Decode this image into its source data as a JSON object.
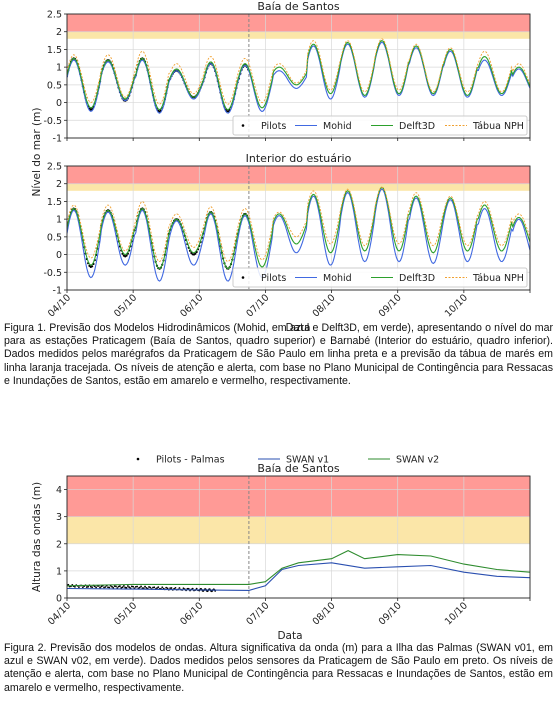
{
  "figure1": {
    "caption": "Figura 1. Previsão dos Modelos Hidrodinâmicos (Mohid, em azul e Delft3D, em verde), apresentando o nível do mar para as estações Praticagem (Baía de Santos, quadro superior) e Barnabé (Interior do estuário, quadro inferior). Dados medidos pelos marégrafos da Praticagem de São Paulo em linha preta e a previsão da tábua de marés em linha laranja tracejada. Os níveis de atenção e alerta, com base no Plano Municipal de Contingência para Ressacas e Inundações de Santos, estão em amarelo e vermelho, respectivamente.",
    "shared_ylabel": "Nível do mar (m)",
    "shared_xlabel": "Data",
    "date_ticks": [
      "04/10",
      "05/10",
      "06/10",
      "07/10",
      "08/10",
      "09/10",
      "10/10"
    ]
  },
  "figure2": {
    "caption": "Figura 2. Previsão dos modelos de ondas. Altura significativa da onda (m) para a Ilha das Palmas (SWAN v01, em azul e SWAN v02, em verde). Dados medidos pelos sensores da Praticagem de São Paulo em preto. Os níveis de atenção e alerta, com base no Plano Municipal de Contingência para Ressacas e Inundações de Santos, estão em amarelo e vermelho, respectivamente.",
    "date_ticks": [
      "04/10",
      "05/10",
      "06/10",
      "07/10",
      "08/10",
      "09/10",
      "10/10"
    ]
  },
  "colors": {
    "observed": "#000000",
    "mohid": "#4169e1",
    "delft3d": "#2ca02c",
    "tabua": "#f0a030",
    "swan_v1": "#2a4fb0",
    "swan_v2": "#2e8b2e",
    "attention": "#fbe6a8",
    "alert": "#ff9a96",
    "forecast_start_line": "#888888"
  },
  "chart_data": [
    {
      "type": "line",
      "title": "Baía de Santos",
      "ylabel": "Nível do mar (m)",
      "ylim": [
        -1,
        2.5
      ],
      "yticks": [
        -1,
        -0.5,
        0,
        0.5,
        1,
        1.5,
        2,
        2.5
      ],
      "x_range_days": [
        "04/10 00:00",
        "11/10 00:00"
      ],
      "forecast_start": "06/10 18:00",
      "attention_band": [
        1.8,
        2.0
      ],
      "alert_band": [
        2.0,
        2.5
      ],
      "grid": true,
      "legend_placement": "lower-right",
      "series": [
        {
          "name": "Pilots",
          "style": "dots",
          "period": "04/10 00:00 – 06/10 18:00",
          "high_tide_peaks_m": [
            1.25,
            1.2,
            1.25,
            0.9,
            1.1,
            1.05
          ],
          "low_tide_troughs_m": [
            -0.2,
            0.05,
            -0.25,
            0.15,
            -0.25,
            -0.3
          ]
        },
        {
          "name": "Mohid",
          "style": "solid",
          "high_tide_peaks_m": [
            1.2,
            1.15,
            1.2,
            0.9,
            1.1,
            1.05,
            0.9,
            1.6,
            1.65,
            1.7,
            1.55,
            1.45,
            1.2,
            0.95
          ],
          "low_tide_troughs_m": [
            -0.25,
            0.05,
            -0.3,
            0.1,
            -0.3,
            -0.25,
            0.4,
            0.1,
            0.15,
            0.2,
            0.2,
            0.15,
            0.2,
            0.2
          ]
        },
        {
          "name": "Delft3D",
          "style": "solid",
          "high_tide_peaks_m": [
            1.25,
            1.2,
            1.25,
            0.95,
            1.15,
            1.1,
            1.0,
            1.65,
            1.7,
            1.75,
            1.6,
            1.5,
            1.3,
            1.0
          ],
          "low_tide_troughs_m": [
            -0.15,
            0.1,
            -0.2,
            0.15,
            -0.2,
            -0.15,
            0.5,
            0.25,
            0.2,
            0.25,
            0.25,
            0.2,
            0.25,
            0.25
          ]
        },
        {
          "name": "Tábua NPH",
          "style": "dashed",
          "high_tide_peaks_m": [
            1.35,
            1.35,
            1.45,
            1.1,
            1.3,
            1.25,
            1.1,
            1.75,
            1.75,
            1.8,
            1.65,
            1.55,
            1.45,
            1.1
          ],
          "low_tide_troughs_m": [
            0.0,
            0.15,
            -0.05,
            0.25,
            -0.05,
            0.0,
            0.55,
            0.35,
            0.3,
            0.35,
            0.3,
            0.3,
            0.3,
            0.3
          ]
        }
      ]
    },
    {
      "type": "line",
      "title": "Interior do estuário",
      "ylabel": "Nível do mar (m)",
      "xlabel": "Data",
      "ylim": [
        -1,
        2.5
      ],
      "yticks": [
        -1,
        -0.5,
        0,
        0.5,
        1,
        1.5,
        2,
        2.5
      ],
      "x_range_days": [
        "04/10 00:00",
        "11/10 00:00"
      ],
      "x_tick_labels": [
        "04/10",
        "05/10",
        "06/10",
        "07/10",
        "08/10",
        "09/10",
        "10/10"
      ],
      "forecast_start": "06/10 18:00",
      "attention_band": [
        1.8,
        2.0
      ],
      "alert_band": [
        2.0,
        2.5
      ],
      "grid": true,
      "legend_placement": "lower-right",
      "series": [
        {
          "name": "Pilots",
          "style": "dots",
          "period": "04/10 00:00 – 06/10 18:00",
          "high_tide_peaks_m": [
            1.3,
            1.25,
            1.3,
            1.0,
            1.2,
            1.15
          ],
          "low_tide_troughs_m": [
            -0.35,
            -0.05,
            -0.4,
            0.0,
            -0.4,
            -0.5
          ]
        },
        {
          "name": "Mohid",
          "style": "solid",
          "high_tide_peaks_m": [
            1.25,
            1.2,
            1.25,
            0.95,
            1.15,
            1.1,
            1.1,
            1.65,
            1.75,
            1.85,
            1.6,
            1.55,
            1.3,
            1.0
          ],
          "low_tide_troughs_m": [
            -0.65,
            -0.3,
            -0.75,
            -0.3,
            -0.75,
            -0.65,
            0.05,
            -0.3,
            -0.2,
            -0.2,
            -0.25,
            -0.2,
            -0.2,
            -0.2
          ]
        },
        {
          "name": "Delft3D",
          "style": "solid",
          "high_tide_peaks_m": [
            1.3,
            1.25,
            1.3,
            1.0,
            1.2,
            1.15,
            1.15,
            1.7,
            1.8,
            1.9,
            1.65,
            1.6,
            1.4,
            1.05
          ],
          "low_tide_troughs_m": [
            -0.3,
            0.0,
            -0.4,
            0.05,
            -0.4,
            -0.35,
            0.3,
            0.05,
            0.1,
            0.1,
            0.05,
            0.1,
            0.1,
            0.1
          ]
        },
        {
          "name": "Tábua NPH",
          "style": "dashed",
          "high_tide_peaks_m": [
            1.4,
            1.4,
            1.5,
            1.15,
            1.35,
            1.3,
            1.2,
            1.8,
            1.85,
            1.9,
            1.75,
            1.65,
            1.5,
            1.15
          ],
          "low_tide_troughs_m": [
            -0.1,
            0.1,
            -0.2,
            0.2,
            -0.2,
            -0.15,
            0.5,
            0.3,
            0.25,
            0.3,
            0.25,
            0.25,
            0.25,
            0.25
          ]
        }
      ]
    },
    {
      "type": "line",
      "title": "Baía de Santos",
      "ylabel": "Altura das ondas (m)",
      "xlabel": "Data",
      "ylim": [
        0,
        4.5
      ],
      "yticks": [
        0,
        1,
        2,
        3,
        4
      ],
      "x_range_days": [
        "04/10 00:00",
        "11/10 00:00"
      ],
      "x_tick_labels": [
        "04/10",
        "05/10",
        "06/10",
        "07/10",
        "08/10",
        "09/10",
        "10/10"
      ],
      "forecast_start": "06/10 18:00",
      "attention_band": [
        2,
        3
      ],
      "alert_band": [
        3,
        4.5
      ],
      "grid": true,
      "legend_placement": "top-center",
      "series": [
        {
          "name": "Pilots - Palmas",
          "style": "dots",
          "x": [
            "04/10 00:00",
            "04/10 12:00",
            "05/10 00:00",
            "05/10 12:00",
            "06/10 00:00",
            "06/10 06:00"
          ],
          "y": [
            0.45,
            0.42,
            0.4,
            0.35,
            0.3,
            0.28
          ]
        },
        {
          "name": "SWAN v1",
          "style": "solid",
          "x": [
            "04/10 00:00",
            "05/10 00:00",
            "06/10 00:00",
            "06/10 18:00",
            "07/10 00:00",
            "07/10 06:00",
            "07/10 12:00",
            "08/10 00:00",
            "08/10 12:00",
            "09/10 00:00",
            "09/10 12:00",
            "10/10 00:00",
            "10/10 12:00",
            "11/10 00:00"
          ],
          "y": [
            0.35,
            0.33,
            0.3,
            0.28,
            0.45,
            1.05,
            1.2,
            1.3,
            1.1,
            1.15,
            1.2,
            0.95,
            0.8,
            0.75
          ]
        },
        {
          "name": "SWAN v2",
          "style": "solid",
          "x": [
            "04/10 00:00",
            "05/10 00:00",
            "06/10 00:00",
            "06/10 18:00",
            "07/10 00:00",
            "07/10 06:00",
            "07/10 12:00",
            "08/10 00:00",
            "08/10 06:00",
            "08/10 12:00",
            "09/10 00:00",
            "09/10 12:00",
            "10/10 00:00",
            "10/10 12:00",
            "11/10 00:00"
          ],
          "y": [
            0.45,
            0.5,
            0.5,
            0.5,
            0.6,
            1.1,
            1.3,
            1.45,
            1.75,
            1.45,
            1.6,
            1.55,
            1.25,
            1.05,
            0.95
          ]
        }
      ]
    }
  ]
}
